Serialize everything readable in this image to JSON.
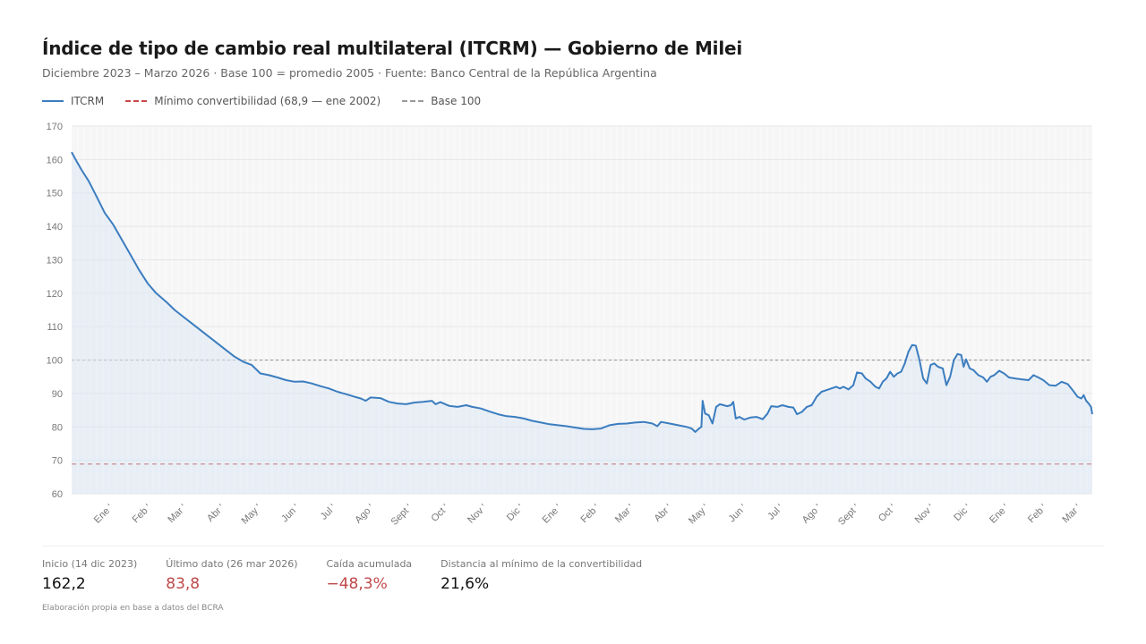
{
  "header": {
    "title": "Índice de tipo de cambio real multilateral (ITCRM) — Gobierno de Milei",
    "subtitle": "Diciembre 2023 – Marzo 2026  ·  Base 100 = promedio 2005  ·  Fuente: Banco Central de la República Argentina"
  },
  "legend": [
    {
      "label": "ITCRM",
      "style": "solid",
      "color": "#3b7dbf"
    },
    {
      "label": "Mínimo convertibilidad (68,9 — ene 2002)",
      "style": "dashed",
      "color": "#c9464b"
    },
    {
      "label": "Base 100",
      "style": "dashed",
      "color": "#9a9a9a"
    }
  ],
  "stats": [
    {
      "label": "Inicio (14 dic 2023)",
      "value": "162,2",
      "tone": "normal"
    },
    {
      "label": "Último dato (26 mar 2026)",
      "value": "83,8",
      "tone": "red"
    },
    {
      "label": "Caída acumulada",
      "value": "−48,3%",
      "tone": "red"
    },
    {
      "label": "Distancia al mínimo de la convertibilidad",
      "value": "21,6%",
      "tone": "normal"
    }
  ],
  "note": "Elaboración propia en base a datos del BCRA",
  "chart_data": {
    "type": "line",
    "title": "Índice de tipo de cambio real multilateral (ITCRM) — Gobierno de Milei",
    "xlabel": "",
    "ylabel": "",
    "ylim": [
      60,
      170
    ],
    "yticks": [
      60,
      70,
      80,
      90,
      100,
      110,
      120,
      130,
      140,
      150,
      160,
      170
    ],
    "x_start": "2023-12-14",
    "x_end": "2026-03-26",
    "xtick_labels": [
      "Ene",
      "Feb",
      "Mar",
      "Abr",
      "May",
      "Jun",
      "Jul",
      "Ago",
      "Sept",
      "Oct",
      "Nov",
      "Dic",
      "Ene",
      "Feb",
      "Mar",
      "Abr",
      "May",
      "Jun",
      "Jul",
      "Ago",
      "Sept",
      "Oct",
      "Nov",
      "Dic",
      "Ene",
      "Feb",
      "Mar"
    ],
    "xtick_dates": [
      "2024-01-01",
      "2024-02-01",
      "2024-03-01",
      "2024-04-01",
      "2024-05-01",
      "2024-06-01",
      "2024-07-01",
      "2024-08-01",
      "2024-09-01",
      "2024-10-01",
      "2024-11-01",
      "2024-12-01",
      "2025-01-01",
      "2025-02-01",
      "2025-03-01",
      "2025-04-01",
      "2025-05-01",
      "2025-06-01",
      "2025-07-01",
      "2025-08-01",
      "2025-09-01",
      "2025-10-01",
      "2025-11-01",
      "2025-12-01",
      "2026-01-01",
      "2026-02-01",
      "2026-03-01"
    ],
    "grid": true,
    "reference_lines": [
      {
        "name": "Mínimo convertibilidad",
        "value": 68.9,
        "color": "#c9464b"
      },
      {
        "name": "Base 100",
        "value": 100,
        "color": "#9a9a9a"
      }
    ],
    "series": [
      {
        "name": "ITCRM",
        "color": "#3b7dbf",
        "points": [
          [
            "2023-12-14",
            162.2
          ],
          [
            "2023-12-18",
            159.5
          ],
          [
            "2023-12-22",
            157.0
          ],
          [
            "2023-12-28",
            153.5
          ],
          [
            "2024-01-04",
            148.5
          ],
          [
            "2024-01-10",
            144.0
          ],
          [
            "2024-01-17",
            140.5
          ],
          [
            "2024-01-24",
            136.0
          ],
          [
            "2024-01-31",
            131.5
          ],
          [
            "2024-02-07",
            127.0
          ],
          [
            "2024-02-14",
            123.0
          ],
          [
            "2024-02-21",
            120.0
          ],
          [
            "2024-02-29",
            117.5
          ],
          [
            "2024-03-07",
            115.0
          ],
          [
            "2024-03-14",
            113.0
          ],
          [
            "2024-03-21",
            111.0
          ],
          [
            "2024-03-28",
            109.0
          ],
          [
            "2024-04-04",
            107.0
          ],
          [
            "2024-04-11",
            105.0
          ],
          [
            "2024-04-18",
            103.0
          ],
          [
            "2024-04-25",
            101.0
          ],
          [
            "2024-05-02",
            99.5
          ],
          [
            "2024-05-09",
            98.5
          ],
          [
            "2024-05-16",
            96.0
          ],
          [
            "2024-05-23",
            95.5
          ],
          [
            "2024-05-30",
            94.8
          ],
          [
            "2024-06-06",
            94.0
          ],
          [
            "2024-06-13",
            93.5
          ],
          [
            "2024-06-20",
            93.6
          ],
          [
            "2024-06-27",
            93.0
          ],
          [
            "2024-07-04",
            92.2
          ],
          [
            "2024-07-11",
            91.5
          ],
          [
            "2024-07-18",
            90.5
          ],
          [
            "2024-07-25",
            89.8
          ],
          [
            "2024-08-01",
            89.0
          ],
          [
            "2024-08-06",
            88.5
          ],
          [
            "2024-08-10",
            87.8
          ],
          [
            "2024-08-14",
            88.8
          ],
          [
            "2024-08-22",
            88.6
          ],
          [
            "2024-08-29",
            87.5
          ],
          [
            "2024-09-05",
            87.0
          ],
          [
            "2024-09-12",
            86.8
          ],
          [
            "2024-09-19",
            87.3
          ],
          [
            "2024-09-26",
            87.5
          ],
          [
            "2024-10-03",
            87.8
          ],
          [
            "2024-10-06",
            86.8
          ],
          [
            "2024-10-10",
            87.4
          ],
          [
            "2024-10-17",
            86.3
          ],
          [
            "2024-10-24",
            86.0
          ],
          [
            "2024-10-31",
            86.5
          ],
          [
            "2024-11-05",
            86.0
          ],
          [
            "2024-11-12",
            85.5
          ],
          [
            "2024-11-19",
            84.6
          ],
          [
            "2024-11-26",
            83.8
          ],
          [
            "2024-12-03",
            83.2
          ],
          [
            "2024-12-10",
            83.0
          ],
          [
            "2024-12-17",
            82.5
          ],
          [
            "2024-12-24",
            81.8
          ],
          [
            "2024-12-31",
            81.3
          ],
          [
            "2025-01-07",
            80.8
          ],
          [
            "2025-01-14",
            80.5
          ],
          [
            "2025-01-21",
            80.2
          ],
          [
            "2025-01-28",
            79.8
          ],
          [
            "2025-02-04",
            79.4
          ],
          [
            "2025-02-11",
            79.3
          ],
          [
            "2025-02-18",
            79.5
          ],
          [
            "2025-02-25",
            80.5
          ],
          [
            "2025-03-04",
            80.9
          ],
          [
            "2025-03-11",
            81.0
          ],
          [
            "2025-03-18",
            81.3
          ],
          [
            "2025-03-25",
            81.5
          ],
          [
            "2025-04-01",
            81.0
          ],
          [
            "2025-04-05",
            80.2
          ],
          [
            "2025-04-08",
            81.5
          ],
          [
            "2025-04-15",
            81.0
          ],
          [
            "2025-04-22",
            80.5
          ],
          [
            "2025-04-29",
            80.0
          ],
          [
            "2025-05-03",
            79.5
          ],
          [
            "2025-05-06",
            78.5
          ],
          [
            "2025-05-09",
            79.5
          ],
          [
            "2025-05-11",
            80.0
          ],
          [
            "2025-05-12",
            87.8
          ],
          [
            "2025-05-14",
            84.0
          ],
          [
            "2025-05-17",
            83.5
          ],
          [
            "2025-05-20",
            81.0
          ],
          [
            "2025-05-23",
            86.0
          ],
          [
            "2025-05-26",
            86.8
          ],
          [
            "2025-05-29",
            86.5
          ],
          [
            "2025-06-01",
            86.2
          ],
          [
            "2025-06-04",
            86.5
          ],
          [
            "2025-06-06",
            87.5
          ],
          [
            "2025-06-08",
            82.5
          ],
          [
            "2025-06-11",
            83.0
          ],
          [
            "2025-06-15",
            82.2
          ],
          [
            "2025-06-20",
            82.8
          ],
          [
            "2025-06-25",
            83.0
          ],
          [
            "2025-06-30",
            82.3
          ],
          [
            "2025-07-04",
            84.0
          ],
          [
            "2025-07-07",
            86.2
          ],
          [
            "2025-07-12",
            86.0
          ],
          [
            "2025-07-16",
            86.5
          ],
          [
            "2025-07-21",
            86.0
          ],
          [
            "2025-07-25",
            85.8
          ],
          [
            "2025-07-28",
            83.8
          ],
          [
            "2025-08-01",
            84.5
          ],
          [
            "2025-08-05",
            86.0
          ],
          [
            "2025-08-09",
            86.5
          ],
          [
            "2025-08-13",
            89.0
          ],
          [
            "2025-08-17",
            90.5
          ],
          [
            "2025-08-21",
            91.0
          ],
          [
            "2025-08-25",
            91.5
          ],
          [
            "2025-08-29",
            92.0
          ],
          [
            "2025-09-01",
            91.5
          ],
          [
            "2025-09-04",
            92.0
          ],
          [
            "2025-09-08",
            91.2
          ],
          [
            "2025-09-12",
            92.5
          ],
          [
            "2025-09-15",
            96.3
          ],
          [
            "2025-09-19",
            96.0
          ],
          [
            "2025-09-22",
            94.5
          ],
          [
            "2025-09-26",
            93.5
          ],
          [
            "2025-09-30",
            92.0
          ],
          [
            "2025-10-03",
            91.5
          ],
          [
            "2025-10-06",
            93.5
          ],
          [
            "2025-10-09",
            94.5
          ],
          [
            "2025-10-12",
            96.5
          ],
          [
            "2025-10-15",
            95.0
          ],
          [
            "2025-10-18",
            96.0
          ],
          [
            "2025-10-21",
            96.5
          ],
          [
            "2025-10-24",
            99.0
          ],
          [
            "2025-10-27",
            102.5
          ],
          [
            "2025-10-30",
            104.5
          ],
          [
            "2025-11-02",
            104.3
          ],
          [
            "2025-11-05",
            100.0
          ],
          [
            "2025-11-08",
            94.5
          ],
          [
            "2025-11-11",
            93.0
          ],
          [
            "2025-11-14",
            98.5
          ],
          [
            "2025-11-17",
            99.0
          ],
          [
            "2025-11-20",
            98.0
          ],
          [
            "2025-11-24",
            97.5
          ],
          [
            "2025-11-27",
            92.5
          ],
          [
            "2025-11-30",
            95.0
          ],
          [
            "2025-12-03",
            100.0
          ],
          [
            "2025-12-06",
            101.8
          ],
          [
            "2025-12-09",
            101.5
          ],
          [
            "2025-12-11",
            98.0
          ],
          [
            "2025-12-13",
            100.2
          ],
          [
            "2025-12-16",
            97.5
          ],
          [
            "2025-12-19",
            97.0
          ],
          [
            "2025-12-23",
            95.5
          ],
          [
            "2025-12-27",
            94.8
          ],
          [
            "2025-12-30",
            93.5
          ],
          [
            "2026-01-02",
            95.0
          ],
          [
            "2026-01-05",
            95.5
          ],
          [
            "2026-01-09",
            96.8
          ],
          [
            "2026-01-13",
            96.0
          ],
          [
            "2026-01-17",
            94.8
          ],
          [
            "2026-01-22",
            94.5
          ],
          [
            "2026-01-28",
            94.2
          ],
          [
            "2026-02-02",
            94.0
          ],
          [
            "2026-02-06",
            95.5
          ],
          [
            "2026-02-10",
            94.8
          ],
          [
            "2026-02-14",
            94.0
          ],
          [
            "2026-02-19",
            92.5
          ],
          [
            "2026-02-24",
            92.3
          ],
          [
            "2026-03-01",
            93.5
          ],
          [
            "2026-03-06",
            92.8
          ],
          [
            "2026-03-10",
            91.0
          ],
          [
            "2026-03-14",
            89.0
          ],
          [
            "2026-03-17",
            88.5
          ],
          [
            "2026-03-19",
            89.5
          ],
          [
            "2026-03-21",
            87.8
          ],
          [
            "2026-03-23",
            87.0
          ],
          [
            "2026-03-25",
            86.0
          ],
          [
            "2026-03-26",
            83.8
          ]
        ]
      }
    ]
  }
}
